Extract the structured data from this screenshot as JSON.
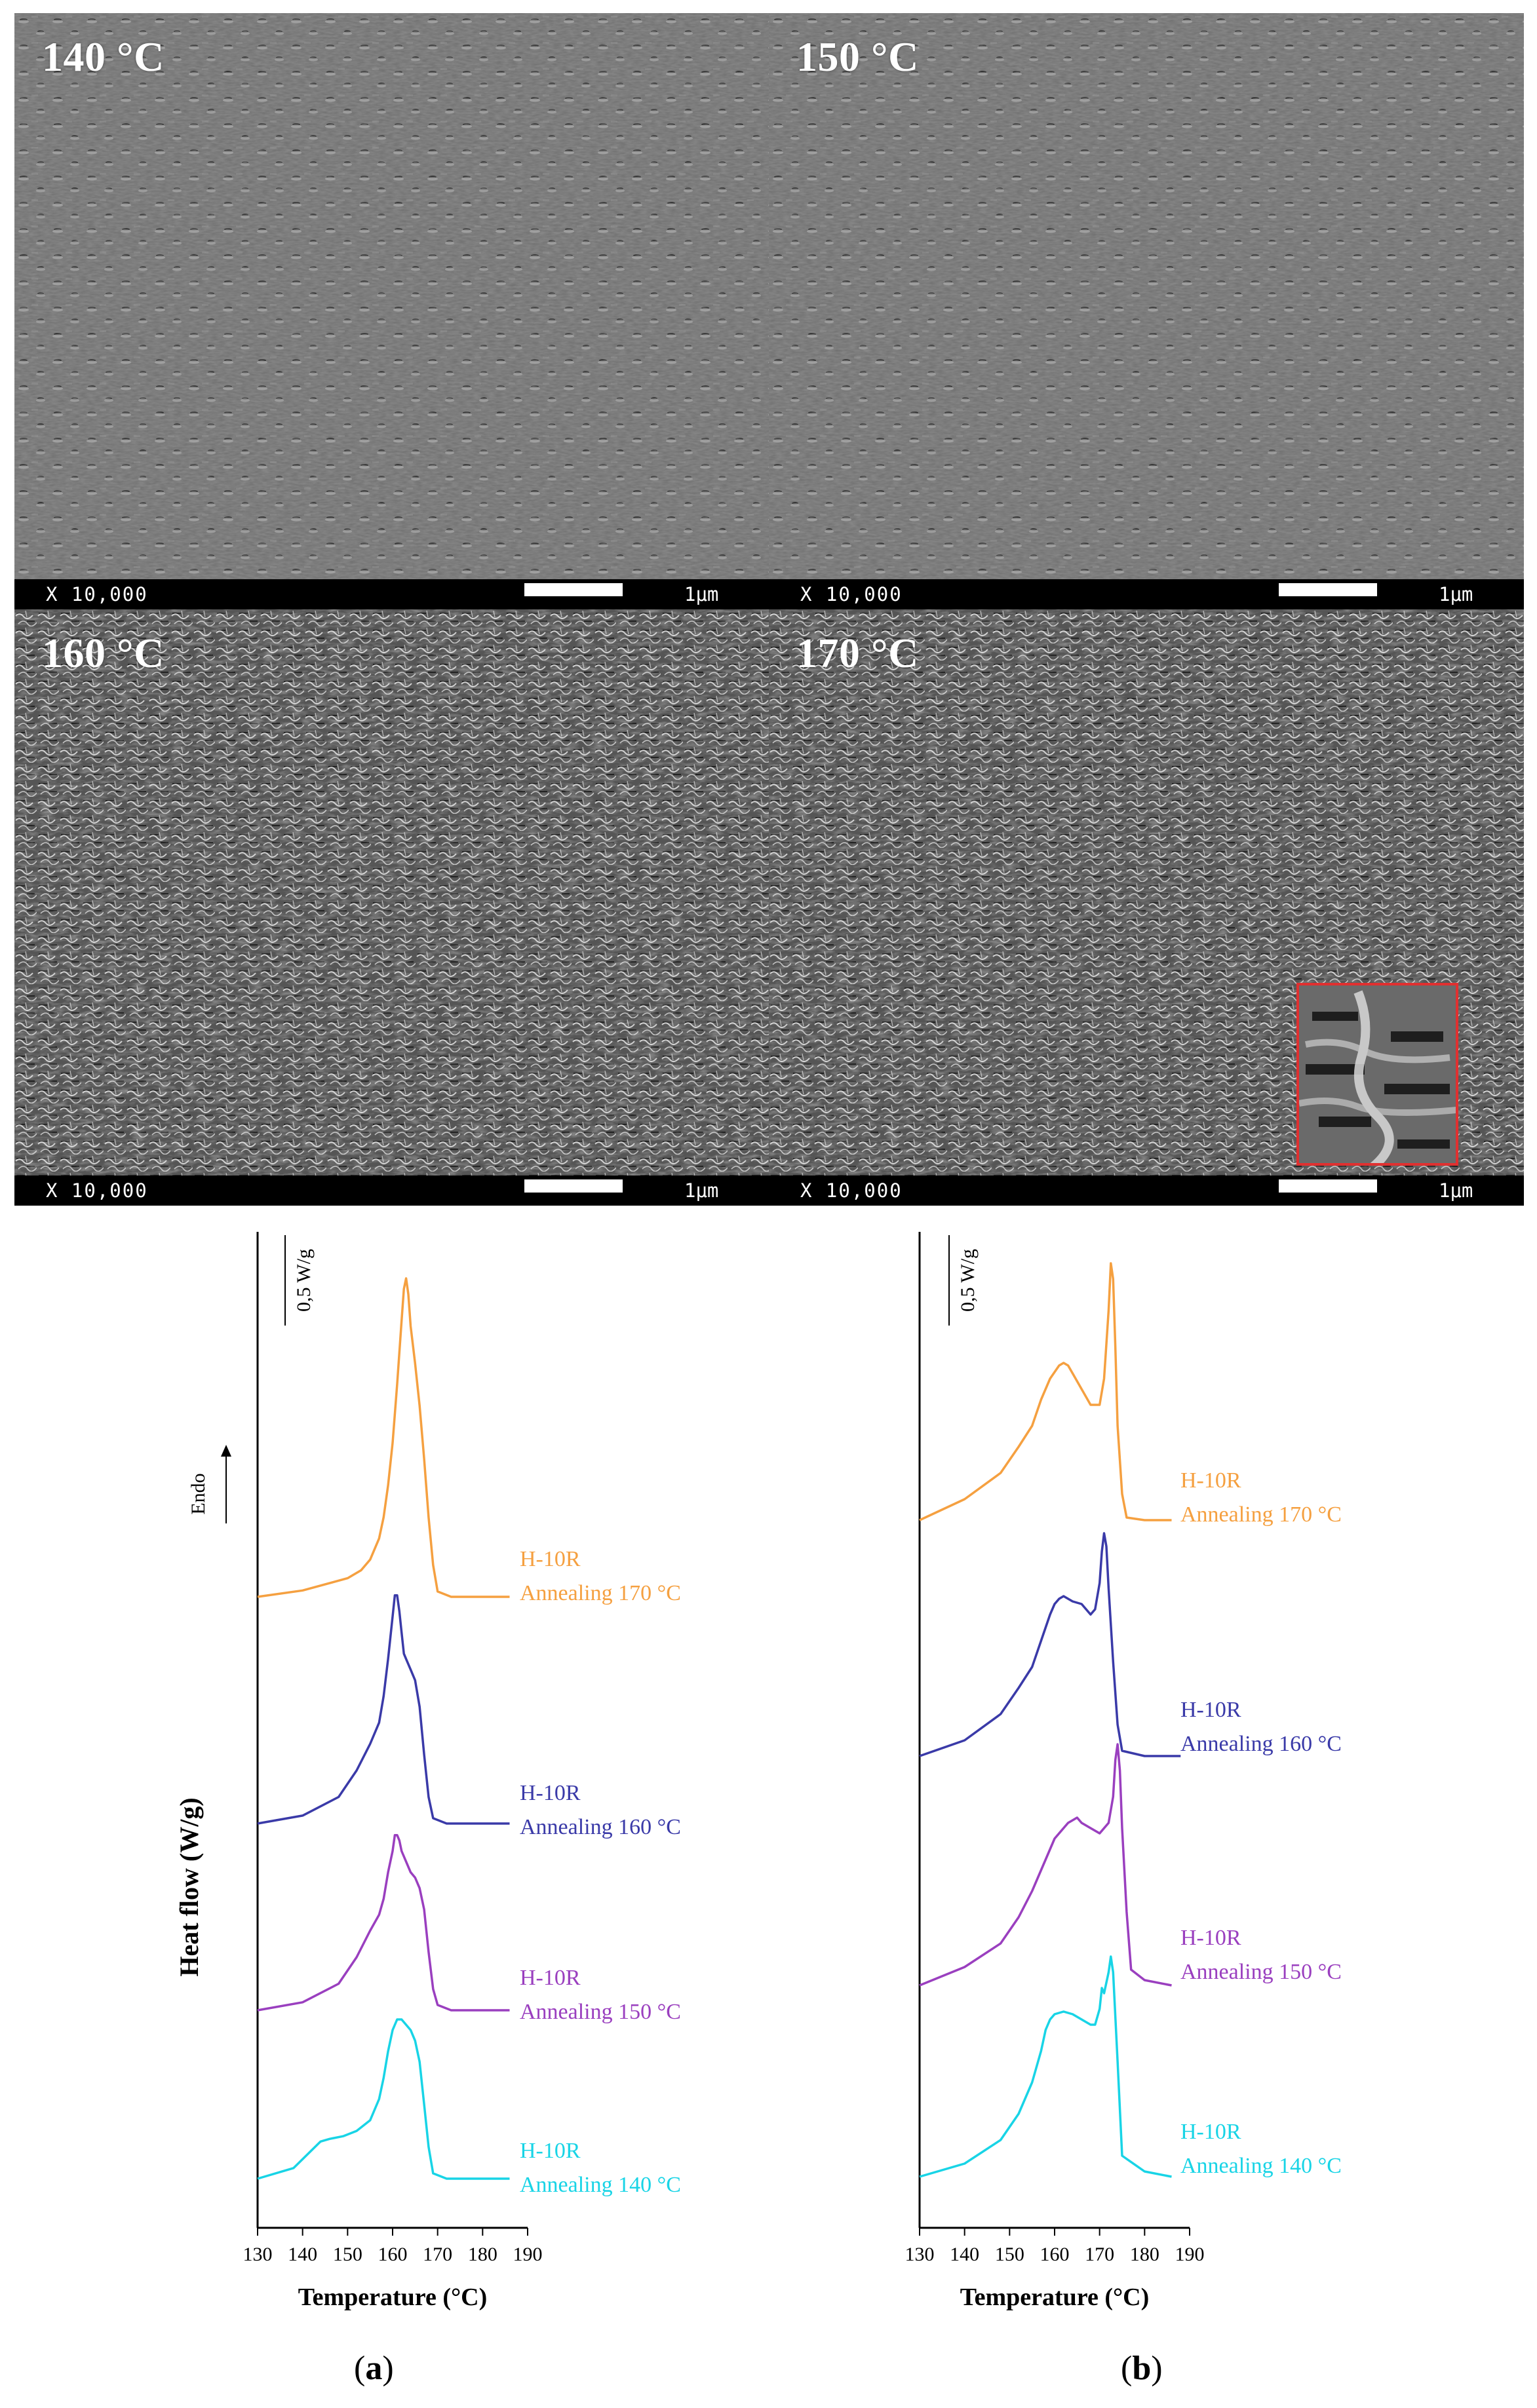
{
  "sem_images": [
    {
      "temperature_label": "140 °C",
      "magnification": "X 10,000",
      "scale": "1μm"
    },
    {
      "temperature_label": "150 °C",
      "magnification": "X 10,000",
      "scale": "1μm"
    },
    {
      "temperature_label": "160 °C",
      "magnification": "X 10,000",
      "scale": "1μm"
    },
    {
      "temperature_label": "170 °C",
      "magnification": "X 10,000",
      "scale": "1μm"
    }
  ],
  "colors": {
    "annealing_170": "#f5a040",
    "annealing_160": "#3a3aa8",
    "annealing_150": "#9a3fbf",
    "annealing_140": "#18d4e6",
    "inset_border": "#e03030"
  },
  "chart_data": [
    {
      "type": "line",
      "panel_label": "a",
      "xlabel": "Temperature (°C)",
      "ylabel": "Heat flow (W/g)",
      "xlim": [
        130,
        190
      ],
      "x_ticks": [
        "130",
        "140",
        "150",
        "160",
        "170",
        "180",
        "190"
      ],
      "scale_label": "0,5 W/g",
      "direction_label": "Endo",
      "series": [
        {
          "line1": "H-10R",
          "line2": "Annealing 170 °C",
          "color": "#f5a040",
          "x": [
            130,
            140,
            150,
            153,
            155,
            157,
            158,
            159,
            160,
            161,
            162,
            162.5,
            163,
            163.5,
            164,
            165,
            166,
            167,
            168,
            169,
            170,
            173,
            178,
            186
          ],
          "y": [
            0,
            0.12,
            0.35,
            0.5,
            0.7,
            1.1,
            1.5,
            2.1,
            2.9,
            4.0,
            5.2,
            5.8,
            6.0,
            5.7,
            5.1,
            4.4,
            3.6,
            2.6,
            1.5,
            0.6,
            0.1,
            0,
            0,
            0
          ]
        },
        {
          "line1": "H-10R",
          "line2": "Annealing 160 °C",
          "color": "#3a3aa8",
          "x": [
            130,
            140,
            148,
            152,
            155,
            157,
            158,
            159,
            160,
            160.5,
            161,
            161.5,
            162,
            162.5,
            163,
            164,
            165,
            166,
            167,
            168,
            169,
            172,
            178,
            186
          ],
          "y": [
            0,
            0.15,
            0.5,
            1.0,
            1.5,
            1.9,
            2.4,
            3.1,
            3.9,
            4.3,
            4.3,
            4.0,
            3.6,
            3.2,
            3.1,
            2.9,
            2.7,
            2.2,
            1.3,
            0.5,
            0.1,
            0,
            0,
            0
          ]
        },
        {
          "line1": "H-10R",
          "line2": "Annealing 150 °C",
          "color": "#9a3fbf",
          "x": [
            130,
            140,
            148,
            152,
            155,
            157,
            158,
            159,
            160,
            160.5,
            161,
            161.5,
            162,
            163,
            164,
            165,
            166,
            167,
            168,
            169,
            170,
            173,
            178,
            186
          ],
          "y": [
            0,
            0.15,
            0.5,
            1.0,
            1.5,
            1.8,
            2.1,
            2.6,
            3.0,
            3.3,
            3.3,
            3.2,
            3.0,
            2.8,
            2.6,
            2.5,
            2.3,
            1.9,
            1.1,
            0.4,
            0.1,
            0,
            0,
            0
          ]
        },
        {
          "line1": "H-10R",
          "line2": "Annealing 140 °C",
          "color": "#18d4e6",
          "x": [
            130,
            138,
            141,
            144,
            146,
            149,
            152,
            155,
            157,
            158,
            159,
            160,
            161,
            162,
            163,
            164,
            165,
            166,
            167,
            168,
            169,
            172,
            178,
            186
          ],
          "y": [
            0,
            0.2,
            0.45,
            0.7,
            0.75,
            0.8,
            0.9,
            1.1,
            1.5,
            1.9,
            2.4,
            2.8,
            3.0,
            3.0,
            2.9,
            2.8,
            2.6,
            2.2,
            1.4,
            0.6,
            0.1,
            0,
            0,
            0
          ]
        }
      ]
    },
    {
      "type": "line",
      "panel_label": "b",
      "xlabel": "Temperature (°C)",
      "ylabel": "",
      "xlim": [
        130,
        190
      ],
      "x_ticks": [
        "130",
        "140",
        "150",
        "160",
        "170",
        "180",
        "190"
      ],
      "scale_label": "0,5 W/g",
      "series": [
        {
          "line1": "H-10R",
          "line2": "Annealing 170 °C",
          "color": "#f5a040",
          "x": [
            130,
            140,
            148,
            152,
            155,
            157,
            159,
            161,
            162,
            163,
            164,
            166,
            168,
            170,
            171,
            172,
            172.5,
            173,
            173.5,
            174,
            175,
            176,
            180,
            186
          ],
          "y": [
            0,
            0.4,
            0.9,
            1.4,
            1.8,
            2.3,
            2.7,
            2.95,
            3.0,
            2.95,
            2.8,
            2.5,
            2.2,
            2.2,
            2.7,
            4.0,
            4.9,
            4.6,
            3.3,
            1.8,
            0.5,
            0.05,
            0,
            0
          ]
        },
        {
          "line1": "H-10R",
          "line2": "Annealing 160 °C",
          "color": "#3a3aa8",
          "x": [
            130,
            140,
            148,
            152,
            155,
            157,
            159,
            160,
            161,
            162,
            164,
            166,
            168,
            169,
            170,
            170.5,
            171,
            171.5,
            172,
            173,
            174,
            175,
            180,
            188
          ],
          "y": [
            0,
            0.3,
            0.8,
            1.3,
            1.7,
            2.2,
            2.7,
            2.9,
            3.0,
            3.05,
            2.95,
            2.9,
            2.7,
            2.8,
            3.3,
            3.9,
            4.25,
            4.0,
            3.2,
            1.8,
            0.6,
            0.1,
            0,
            0
          ]
        },
        {
          "line1": "H-10R",
          "line2": "Annealing 150 °C",
          "color": "#9a3fbf",
          "x": [
            130,
            140,
            148,
            152,
            155,
            158,
            160,
            162,
            163,
            164,
            165,
            166,
            168,
            170,
            172,
            173,
            173.5,
            174,
            174.5,
            175,
            176,
            177,
            180,
            186
          ],
          "y": [
            0,
            0.35,
            0.8,
            1.3,
            1.8,
            2.4,
            2.8,
            3.0,
            3.1,
            3.15,
            3.2,
            3.1,
            3.0,
            2.9,
            3.1,
            3.6,
            4.3,
            4.6,
            4.1,
            3.0,
            1.4,
            0.3,
            0.1,
            0
          ]
        },
        {
          "line1": "H-10R",
          "line2": "Annealing 140 °C",
          "color": "#18d4e6",
          "x": [
            130,
            140,
            148,
            152,
            155,
            157,
            158,
            159,
            160,
            162,
            164,
            166,
            168,
            169,
            170,
            170.5,
            171,
            172,
            172.5,
            173,
            174,
            175,
            180,
            186
          ],
          "y": [
            0,
            0.25,
            0.7,
            1.2,
            1.8,
            2.4,
            2.8,
            3.0,
            3.1,
            3.15,
            3.1,
            3.0,
            2.9,
            2.9,
            3.2,
            3.6,
            3.5,
            3.9,
            4.2,
            3.9,
            2.2,
            0.4,
            0.1,
            0
          ]
        }
      ]
    }
  ]
}
